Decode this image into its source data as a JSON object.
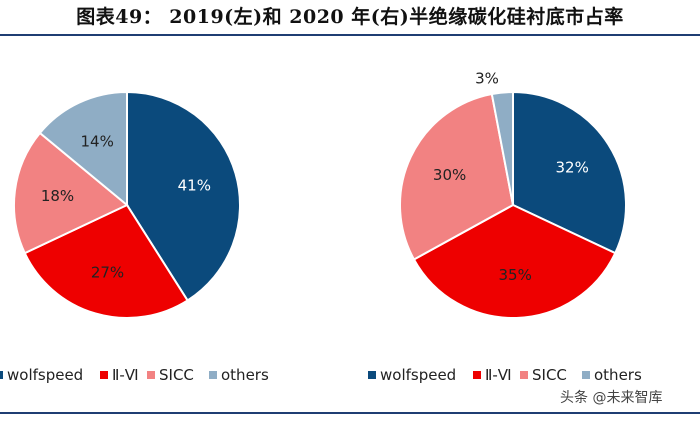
{
  "title": "图表49：  2019(左)和 2020 年(右)半绝缘碳化硅衬底市占率",
  "watermark": "头条 @未来智库",
  "colors": {
    "wolfspeed": "#0b4a7c",
    "ii_vi": "#ee0000",
    "sicc": "#f28282",
    "others": "#8fadc5",
    "rule": "#1f3d73"
  },
  "chart_data": [
    {
      "type": "pie",
      "title": "2019",
      "categories": [
        "wolfspeed",
        "Ⅱ-Ⅵ",
        "SICC",
        "others"
      ],
      "values": [
        41,
        27,
        18,
        14
      ],
      "labels": [
        "41%",
        "27%",
        "18%",
        "14%"
      ],
      "legend": "bottom"
    },
    {
      "type": "pie",
      "title": "2020",
      "categories": [
        "wolfspeed",
        "Ⅱ-Ⅵ",
        "SICC",
        "others"
      ],
      "values": [
        32,
        35,
        30,
        3
      ],
      "labels": [
        "32%",
        "35%",
        "30%",
        "3%"
      ],
      "legend": "bottom"
    }
  ]
}
